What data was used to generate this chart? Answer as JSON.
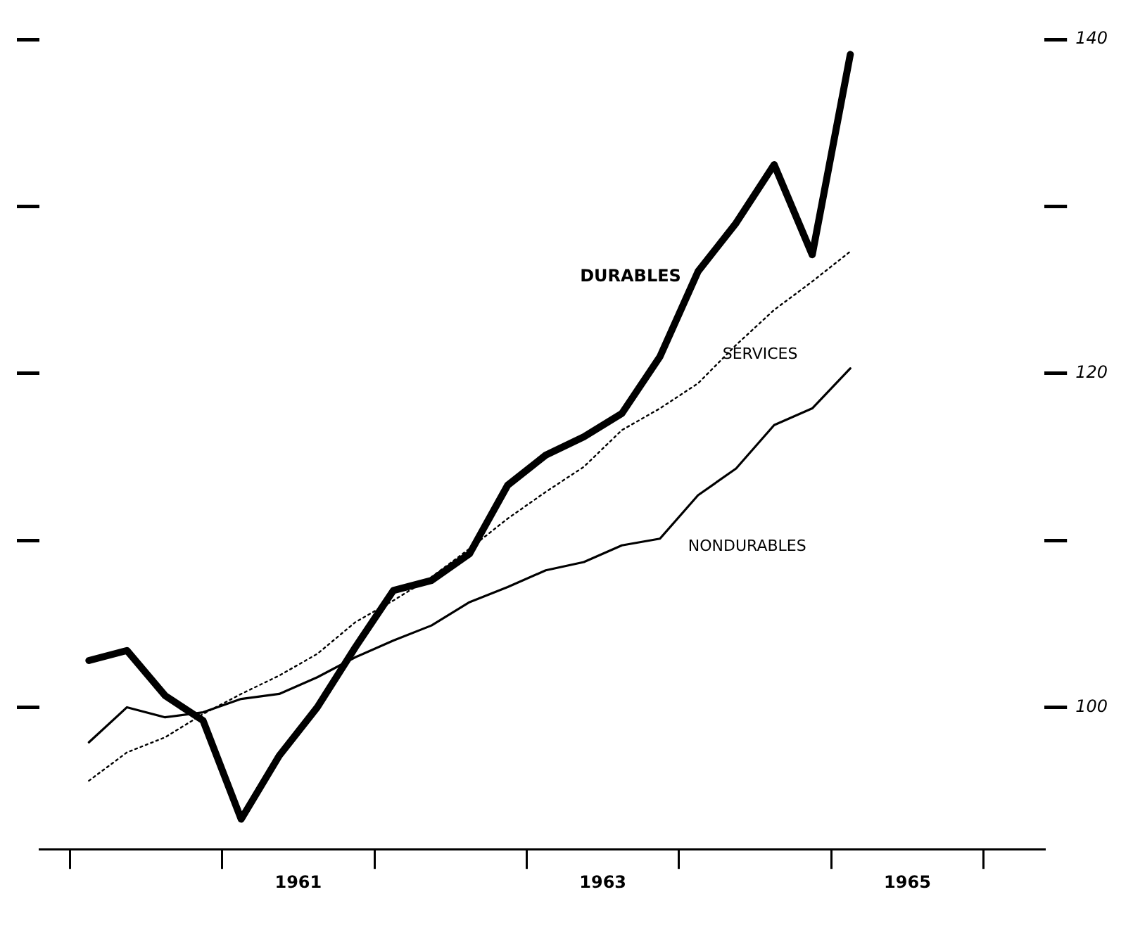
{
  "chart_data": {
    "type": "line",
    "xlim": [
      1959.8,
      1966.4
    ],
    "xticks": [
      {
        "value": 1960,
        "label": null
      },
      {
        "value": 1961,
        "label": null
      },
      {
        "value": 1961.5,
        "label": "1961"
      },
      {
        "value": 1962,
        "label": null
      },
      {
        "value": 1963,
        "label": null
      },
      {
        "value": 1963.5,
        "label": "1963"
      },
      {
        "value": 1964,
        "label": null
      },
      {
        "value": 1965,
        "label": null
      },
      {
        "value": 1965.5,
        "label": "1965"
      },
      {
        "value": 1966,
        "label": null
      }
    ],
    "ylim": [
      91.5,
      140
    ],
    "yticks": [
      {
        "value": 100,
        "label": "100"
      },
      {
        "value": 110,
        "label": null
      },
      {
        "value": 120,
        "label": "120"
      },
      {
        "value": 130,
        "label": null
      },
      {
        "value": 140,
        "label": "140"
      }
    ],
    "x": [
      1960.125,
      1960.375,
      1960.625,
      1960.875,
      1961.125,
      1961.375,
      1961.625,
      1961.875,
      1962.125,
      1962.375,
      1962.625,
      1962.875,
      1963.125,
      1963.375,
      1963.625,
      1963.875,
      1964.125,
      1964.375,
      1964.625,
      1964.875,
      1965.125
    ],
    "series": [
      {
        "name": "DURABLES",
        "color": "#000000",
        "line_style": "solid",
        "values": [
          102.8,
          103.4,
          100.7,
          99.2,
          93.3,
          97.1,
          100,
          103.6,
          107.0,
          107.6,
          109.2,
          113.3,
          115.1,
          116.2,
          117.6,
          121.0,
          126.1,
          129.0,
          132.5,
          127.1,
          139.1
        ]
      },
      {
        "name": "SERVICES",
        "color": "#000000",
        "line_style": "dotted",
        "values": [
          95.6,
          97.3,
          98.2,
          99.6,
          100.8,
          101.9,
          103.2,
          105.1,
          106.4,
          107.8,
          109.5,
          111.3,
          112.9,
          114.4,
          116.6,
          117.9,
          119.4,
          121.7,
          123.8,
          125.5,
          127.3
        ]
      },
      {
        "name": "NONDURABLES",
        "color": "#000000",
        "line_style": "solid",
        "values": [
          97.9,
          100,
          99.4,
          99.7,
          100.5,
          100.8,
          101.8,
          103.0,
          104.0,
          104.9,
          106.3,
          107.2,
          108.2,
          108.7,
          109.7,
          110.1,
          112.7,
          114.3,
          116.9,
          117.9,
          120.3
        ]
      }
    ],
    "grid": false,
    "legend": false,
    "marker": "none",
    "tick_labels": "xy"
  }
}
